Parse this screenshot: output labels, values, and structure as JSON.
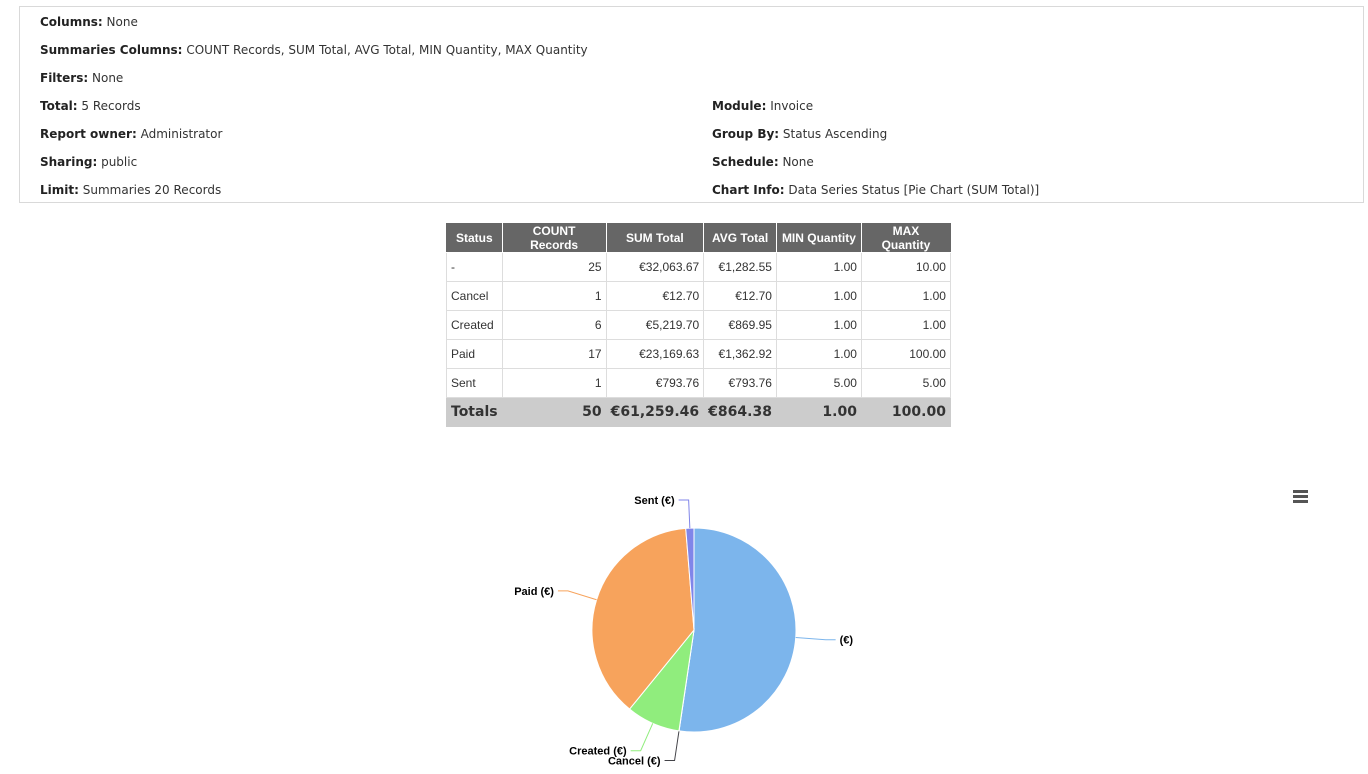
{
  "info": {
    "columns_label": "Columns:",
    "columns_value": "None",
    "summaries_label": "Summaries Columns:",
    "summaries_value": "COUNT Records, SUM Total, AVG Total, MIN Quantity, MAX Quantity",
    "filters_label": "Filters:",
    "filters_value": "None",
    "total_label": "Total:",
    "total_value": "5 Records",
    "module_label": "Module:",
    "module_value": "Invoice",
    "owner_label": "Report owner:",
    "owner_value": "Administrator",
    "groupby_label": "Group By:",
    "groupby_value": "Status Ascending",
    "sharing_label": "Sharing:",
    "sharing_value": "public",
    "schedule_label": "Schedule:",
    "schedule_value": "None",
    "limit_label": "Limit:",
    "limit_value": "Summaries 20 Records",
    "chartinfo_label": "Chart Info:",
    "chartinfo_value": "Data Series Status [Pie Chart (SUM Total)]"
  },
  "table": {
    "headers": [
      "Status",
      "COUNT Records",
      "SUM Total",
      "AVG Total",
      "MIN Quantity",
      "MAX Quantity"
    ],
    "rows": [
      [
        "-",
        "25",
        "€32,063.67",
        "€1,282.55",
        "1.00",
        "10.00"
      ],
      [
        "Cancel",
        "1",
        "€12.70",
        "€12.70",
        "1.00",
        "1.00"
      ],
      [
        "Created",
        "6",
        "€5,219.70",
        "€869.95",
        "1.00",
        "1.00"
      ],
      [
        "Paid",
        "17",
        "€23,169.63",
        "€1,362.92",
        "1.00",
        "100.00"
      ],
      [
        "Sent",
        "1",
        "€793.76",
        "€793.76",
        "5.00",
        "5.00"
      ]
    ],
    "totals": [
      "Totals",
      "50",
      "€61,259.46",
      "€864.38",
      "1.00",
      "100.00"
    ]
  },
  "chart_data": {
    "type": "pie",
    "title": "",
    "slices": [
      {
        "label": "(€)",
        "value": 32063.67,
        "color": "#7cb5ec"
      },
      {
        "label": "Cancel (€)",
        "value": 12.7,
        "color": "#434348"
      },
      {
        "label": "Created (€)",
        "value": 5219.7,
        "color": "#90ed7d"
      },
      {
        "label": "Paid (€)",
        "value": 23169.63,
        "color": "#f7a35c"
      },
      {
        "label": "Sent (€)",
        "value": 793.76,
        "color": "#8085e9"
      }
    ],
    "legend": "none"
  },
  "icons": {
    "chart_menu": "hamburger-menu-icon"
  }
}
